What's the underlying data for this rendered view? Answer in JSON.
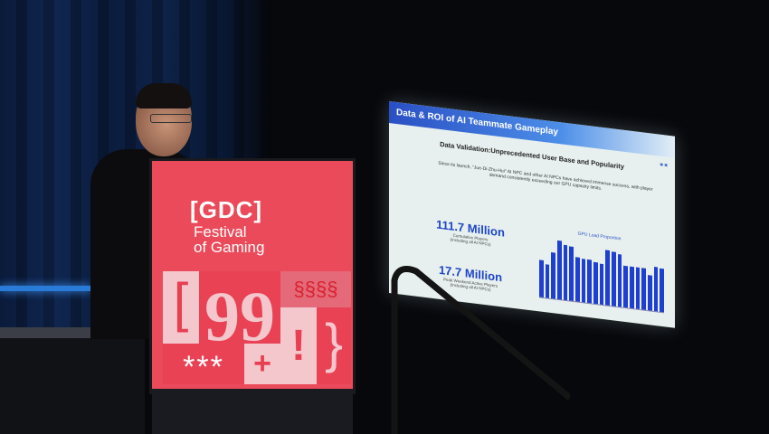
{
  "podium": {
    "logo_bracket": "[GDC]",
    "logo_line1": "Festival",
    "logo_line2": "of Gaming",
    "tiles": [
      "[",
      "99",
      "§§§§",
      "!",
      "}",
      "***",
      "+"
    ]
  },
  "slide": {
    "title": "Data & ROI of AI Teammate Gameplay",
    "subtitle": "Data Validation:Unprecedented User Base and Popularity",
    "description": "Since its launch, \"Jue-Di-Zhu-Hui\" AI NPC and other AI NPCs have achieved immense success, with player demand consistently exceeding our GPU capacity limits.",
    "stats": [
      {
        "value": "111.7 Million",
        "label": "Cumulative Players",
        "note": "(Including all AI NPCs)"
      },
      {
        "value": "17.7 Million",
        "label": "Peak Weekend Active Players",
        "note": "(Including all AI NPCs)"
      }
    ],
    "chart_title": "GPU Load Proportion",
    "accent": "#1e45c8"
  }
}
